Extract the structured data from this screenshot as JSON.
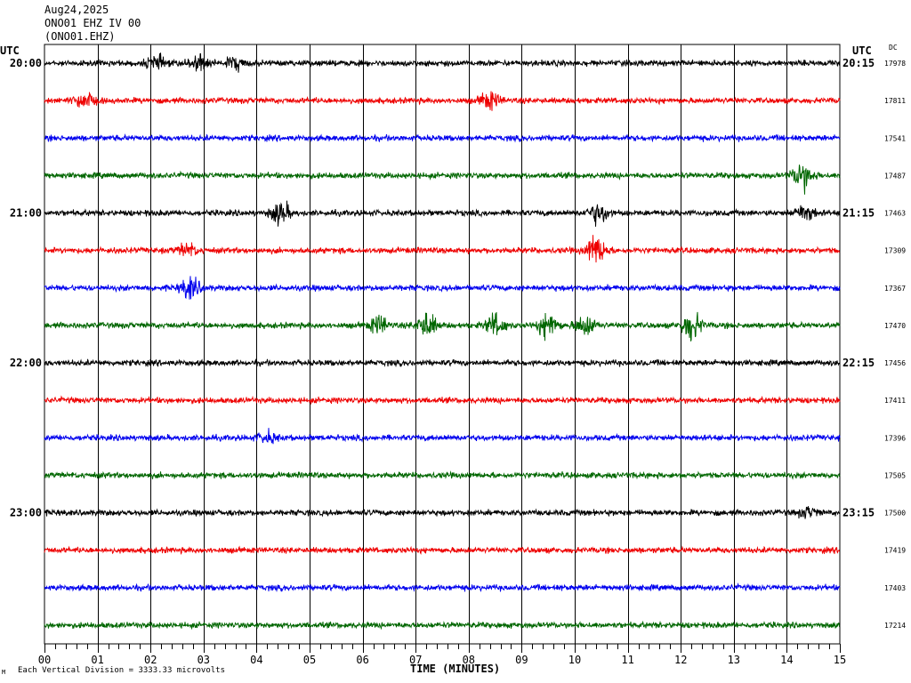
{
  "header": {
    "date": "Aug24,2025",
    "station": "ONO01 EHZ IV 00",
    "channel": "(ONO01.EHZ)"
  },
  "left_axis_label": "UTC",
  "right_axis_label": "UTC",
  "dc_label": "DC",
  "footnote": "Each Vertical Division = 3333.33 microvolts",
  "corner_mark": "M",
  "chart_data": {
    "type": "line",
    "xlabel": "TIME (MINUTES)",
    "xlim": [
      0,
      15
    ],
    "x_ticks": [
      "00",
      "01",
      "02",
      "03",
      "04",
      "05",
      "06",
      "07",
      "08",
      "09",
      "10",
      "11",
      "12",
      "13",
      "14",
      "15"
    ],
    "vertical_division_microvolts": 3333.33,
    "colors": [
      "#000000",
      "#ee0000",
      "#0000ee",
      "#006600"
    ],
    "series": [
      {
        "hour_label": "20:00",
        "right_label": "20:15",
        "color": "#000000",
        "dc": "17978",
        "events": [
          {
            "min": 2.1,
            "amp": 1.5
          },
          {
            "min": 2.9,
            "amp": 2
          },
          {
            "min": 3.6,
            "amp": 1.5
          }
        ]
      },
      {
        "color": "#ee0000",
        "dc": "17811",
        "events": [
          {
            "min": 0.75,
            "amp": 2
          },
          {
            "min": 8.4,
            "amp": 2
          }
        ]
      },
      {
        "color": "#0000ee",
        "dc": "17541",
        "events": []
      },
      {
        "color": "#006600",
        "dc": "17487",
        "events": [
          {
            "min": 14.3,
            "amp": 3.5
          }
        ]
      },
      {
        "hour_label": "21:00",
        "right_label": "21:15",
        "color": "#000000",
        "dc": "17463",
        "events": [
          {
            "min": 4.45,
            "amp": 2.5
          },
          {
            "min": 10.45,
            "amp": 2.5
          },
          {
            "min": 14.35,
            "amp": 2
          }
        ]
      },
      {
        "color": "#ee0000",
        "dc": "17309",
        "events": [
          {
            "min": 2.7,
            "amp": 1.5
          },
          {
            "min": 10.4,
            "amp": 3.5
          }
        ]
      },
      {
        "color": "#0000ee",
        "dc": "17367",
        "events": [
          {
            "min": 2.75,
            "amp": 2.5
          }
        ]
      },
      {
        "color": "#006600",
        "dc": "17470",
        "events": [
          {
            "min": 6.3,
            "amp": 2
          },
          {
            "min": 7.2,
            "amp": 3
          },
          {
            "min": 8.5,
            "amp": 2.5
          },
          {
            "min": 9.5,
            "amp": 3
          },
          {
            "min": 10.2,
            "amp": 2.5
          },
          {
            "min": 12.2,
            "amp": 3.5
          }
        ]
      },
      {
        "hour_label": "22:00",
        "right_label": "22:15",
        "color": "#000000",
        "dc": "17456",
        "events": []
      },
      {
        "color": "#ee0000",
        "dc": "17411",
        "events": []
      },
      {
        "color": "#0000ee",
        "dc": "17396",
        "events": [
          {
            "min": 4.2,
            "amp": 1.2
          }
        ]
      },
      {
        "color": "#006600",
        "dc": "17505",
        "events": []
      },
      {
        "hour_label": "23:00",
        "right_label": "23:15",
        "color": "#000000",
        "dc": "17500",
        "events": [
          {
            "min": 14.4,
            "amp": 1.2
          }
        ]
      },
      {
        "color": "#ee0000",
        "dc": "17419",
        "events": []
      },
      {
        "color": "#0000ee",
        "dc": "17403",
        "events": []
      },
      {
        "color": "#006600",
        "dc": "17214",
        "events": []
      }
    ]
  }
}
